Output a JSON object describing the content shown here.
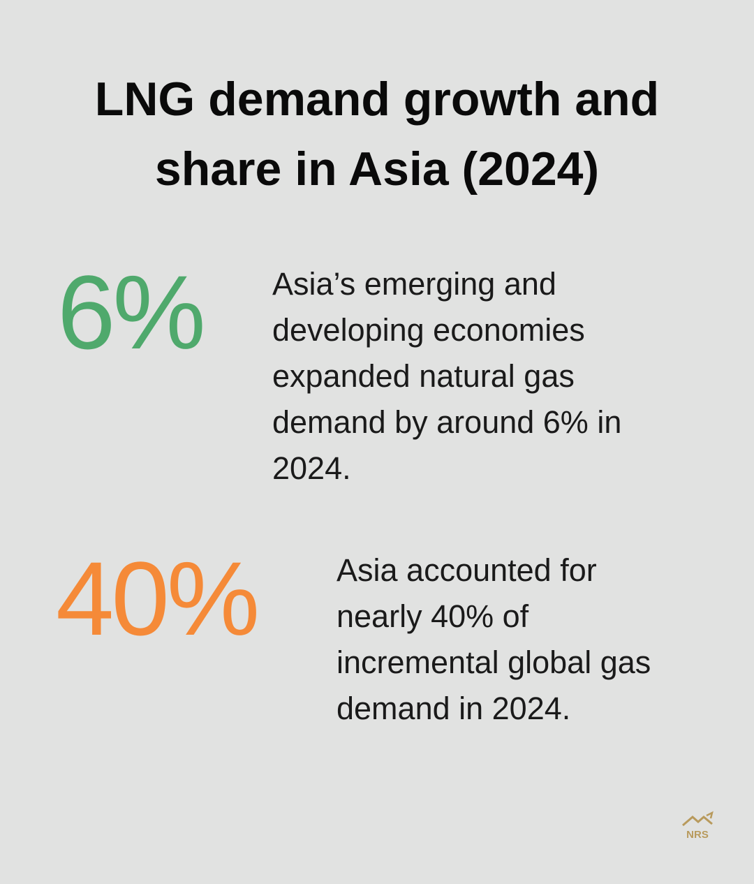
{
  "header": {
    "title": "LNG demand growth and share in Asia (2024)"
  },
  "stats": [
    {
      "figure": "6%",
      "text": "Asia’s emerging and developing economies expanded natural gas demand by around 6% in 2024."
    },
    {
      "figure": "40%",
      "text": "Asia accounted for nearly 40% of incremental global gas demand in 2024."
    }
  ],
  "logo": {
    "text": "NRS"
  }
}
